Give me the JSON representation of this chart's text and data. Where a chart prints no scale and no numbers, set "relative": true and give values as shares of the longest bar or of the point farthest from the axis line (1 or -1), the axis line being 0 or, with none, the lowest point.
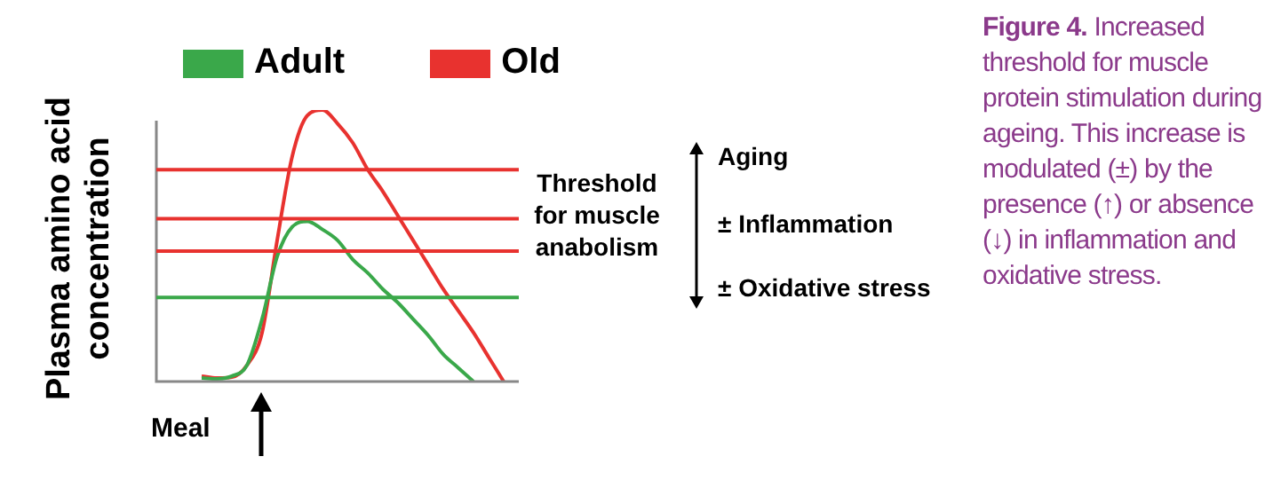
{
  "chart_data": {
    "type": "line",
    "relative": true,
    "ylabel": "Plasma amino acid concentration",
    "legend": "top",
    "categories": [
      null,
      null,
      null,
      null,
      null,
      null,
      null,
      null,
      null,
      null,
      null,
      null,
      null,
      null,
      null,
      null,
      null,
      null,
      null,
      null,
      null,
      null,
      null,
      null,
      null
    ],
    "series": [
      {
        "name": "Adult",
        "color": "#3aa84a",
        "values": [
          null,
          null,
          null,
          0.013,
          0.01,
          0.02,
          0.06,
          0.23,
          0.46,
          0.57,
          0.59,
          0.56,
          0.52,
          0.45,
          0.4,
          0.34,
          0.29,
          0.23,
          0.17,
          0.1,
          0.05,
          0,
          null,
          null,
          null
        ]
      },
      {
        "name": "Old",
        "color": "#e8322f",
        "values": [
          null,
          null,
          null,
          0.02,
          0.013,
          0.016,
          0.06,
          0.18,
          0.52,
          0.83,
          0.98,
          1,
          0.95,
          0.88,
          0.78,
          0.7,
          0.61,
          0.52,
          0.43,
          0.34,
          0.26,
          0.18,
          0.09,
          0,
          null
        ]
      }
    ],
    "ref_lines": [
      {
        "axis": "y",
        "value": 0.78,
        "color": "#e8322f"
      },
      {
        "axis": "y",
        "value": 0.6,
        "color": "#e8322f"
      },
      {
        "axis": "y",
        "value": 0.48,
        "color": "#e8322f"
      },
      {
        "axis": "y",
        "value": 0.31,
        "color": "#3aa84a"
      }
    ],
    "annotations": [
      "Meal",
      "Threshold for muscle anabolism",
      "Aging",
      "± Inflammation",
      "± Oxidative stress",
      "Figure 4.",
      "Increased threshold for muscle protein stimulation during ageing. This increase is modulated (±) by the presence (↑) or absence (↓) in inflammation and oxidative stress."
    ],
    "marker": "none"
  }
}
